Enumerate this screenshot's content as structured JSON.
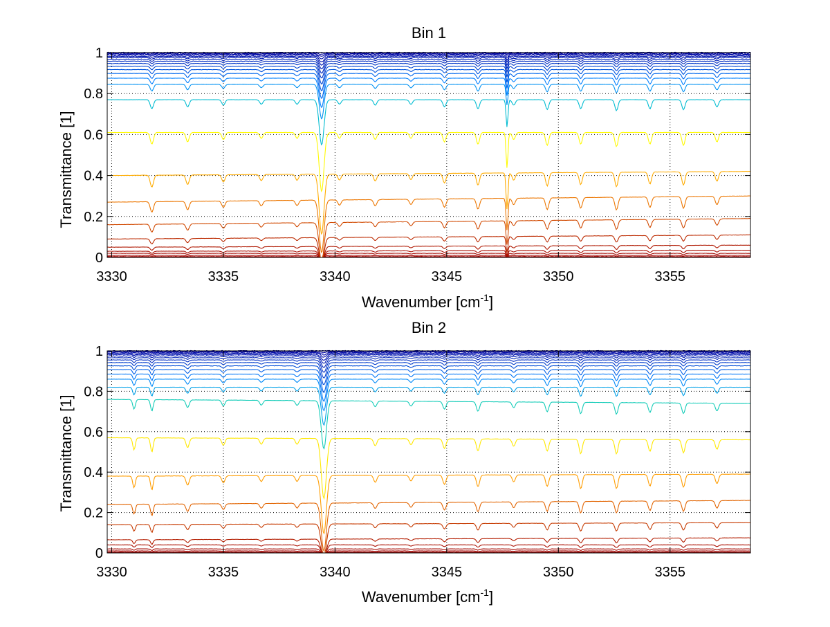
{
  "chart_data": [
    {
      "type": "line",
      "title": "Bin 1",
      "xlabel": "Wavenumber [cm",
      "xlabel_sup": "-1",
      "xlabel_end": "]",
      "ylabel": "Transmittance [1]",
      "xlim": [
        3329.8,
        3358.6
      ],
      "ylim": [
        0,
        1
      ],
      "xticks": [
        3330,
        3335,
        3340,
        3345,
        3350,
        3355
      ],
      "xtick_labels": [
        "3330",
        "3335",
        "3340",
        "3345",
        "3350",
        "3355"
      ],
      "yticks": [
        0,
        0.2,
        0.4,
        0.6,
        0.8,
        1
      ],
      "ytick_labels": [
        "0",
        "0.2",
        "0.4",
        "0.6",
        "0.8",
        "1"
      ],
      "grid": true,
      "legend": "none",
      "colormap": [
        "#0000a0",
        "#0080ff",
        "#00c8c8",
        "#ffff00",
        "#ffd200",
        "#ff9600",
        "#e06000",
        "#c03000",
        "#a00000"
      ],
      "series_baselines": [
        1.0,
        0.997,
        0.993,
        0.988,
        0.982,
        0.975,
        0.967,
        0.958,
        0.947,
        0.933,
        0.917,
        0.898,
        0.875,
        0.845,
        0.77,
        0.61,
        0.42,
        0.3,
        0.19,
        0.11,
        0.06,
        0.035,
        0.02,
        0.01,
        0.004,
        0.001
      ],
      "series_tilt": [
        0,
        0,
        0,
        0,
        0,
        0,
        0,
        0,
        0,
        0,
        0,
        0,
        0,
        0,
        0,
        0,
        -0.02,
        -0.03,
        -0.03,
        -0.02,
        -0.01,
        -0.005,
        0,
        0,
        0,
        0
      ],
      "absorption_lines": [
        {
          "x": 3339.4,
          "depth": 1.0,
          "width": 0.15
        },
        {
          "x": 3347.7,
          "depth": 0.6,
          "width": 0.06
        },
        {
          "x": 3331.8,
          "depth": 0.2,
          "width": 0.1
        },
        {
          "x": 3333.4,
          "depth": 0.16,
          "width": 0.1
        },
        {
          "x": 3335.0,
          "depth": 0.12,
          "width": 0.1
        },
        {
          "x": 3336.7,
          "depth": 0.1,
          "width": 0.1
        },
        {
          "x": 3338.3,
          "depth": 0.1,
          "width": 0.1
        },
        {
          "x": 3340.2,
          "depth": 0.1,
          "width": 0.1
        },
        {
          "x": 3341.8,
          "depth": 0.12,
          "width": 0.1
        },
        {
          "x": 3343.4,
          "depth": 0.1,
          "width": 0.1
        },
        {
          "x": 3344.9,
          "depth": 0.16,
          "width": 0.1
        },
        {
          "x": 3346.4,
          "depth": 0.2,
          "width": 0.1
        },
        {
          "x": 3348.0,
          "depth": 0.12,
          "width": 0.1
        },
        {
          "x": 3349.5,
          "depth": 0.22,
          "width": 0.1
        },
        {
          "x": 3351.0,
          "depth": 0.2,
          "width": 0.1
        },
        {
          "x": 3352.6,
          "depth": 0.24,
          "width": 0.1
        },
        {
          "x": 3354.1,
          "depth": 0.2,
          "width": 0.1
        },
        {
          "x": 3355.6,
          "depth": 0.22,
          "width": 0.1
        },
        {
          "x": 3357.1,
          "depth": 0.16,
          "width": 0.1
        }
      ]
    },
    {
      "type": "line",
      "title": "Bin 2",
      "xlabel": "Wavenumber [cm",
      "xlabel_sup": "-1",
      "xlabel_end": "]",
      "ylabel": "Transmittance [1]",
      "xlim": [
        3329.8,
        3358.6
      ],
      "ylim": [
        0,
        1
      ],
      "xticks": [
        3330,
        3335,
        3340,
        3345,
        3350,
        3355
      ],
      "xtick_labels": [
        "3330",
        "3335",
        "3340",
        "3345",
        "3350",
        "3355"
      ],
      "yticks": [
        0,
        0.2,
        0.4,
        0.6,
        0.8,
        1
      ],
      "ytick_labels": [
        "0",
        "0.2",
        "0.4",
        "0.6",
        "0.8",
        "1"
      ],
      "grid": true,
      "legend": "none",
      "colormap": [
        "#0000a0",
        "#0080ff",
        "#00c8c8",
        "#ffff00",
        "#ffd200",
        "#ff9600",
        "#e06000",
        "#c03000",
        "#a00000"
      ],
      "series_baselines": [
        1.0,
        0.997,
        0.993,
        0.988,
        0.982,
        0.975,
        0.966,
        0.955,
        0.942,
        0.926,
        0.907,
        0.885,
        0.86,
        0.82,
        0.74,
        0.56,
        0.39,
        0.26,
        0.15,
        0.075,
        0.04,
        0.02,
        0.01,
        0.004,
        0.001
      ],
      "series_tilt": [
        0,
        0,
        0,
        0,
        0,
        0,
        0,
        0,
        0,
        0,
        0,
        0,
        0,
        0,
        0.02,
        0.01,
        -0.01,
        -0.02,
        -0.01,
        -0.01,
        0,
        0,
        0,
        0,
        0
      ],
      "absorption_lines": [
        {
          "x": 3339.5,
          "depth": 1.0,
          "width": 0.16
        },
        {
          "x": 3331.0,
          "depth": 0.2,
          "width": 0.08
        },
        {
          "x": 3331.8,
          "depth": 0.24,
          "width": 0.08
        },
        {
          "x": 3333.4,
          "depth": 0.16,
          "width": 0.1
        },
        {
          "x": 3335.0,
          "depth": 0.12,
          "width": 0.1
        },
        {
          "x": 3336.7,
          "depth": 0.1,
          "width": 0.1
        },
        {
          "x": 3338.3,
          "depth": 0.1,
          "width": 0.1
        },
        {
          "x": 3341.8,
          "depth": 0.12,
          "width": 0.1
        },
        {
          "x": 3343.4,
          "depth": 0.1,
          "width": 0.1
        },
        {
          "x": 3344.9,
          "depth": 0.16,
          "width": 0.1
        },
        {
          "x": 3346.4,
          "depth": 0.2,
          "width": 0.1
        },
        {
          "x": 3348.0,
          "depth": 0.12,
          "width": 0.1
        },
        {
          "x": 3349.5,
          "depth": 0.2,
          "width": 0.1
        },
        {
          "x": 3351.0,
          "depth": 0.24,
          "width": 0.1
        },
        {
          "x": 3352.6,
          "depth": 0.24,
          "width": 0.1
        },
        {
          "x": 3354.1,
          "depth": 0.2,
          "width": 0.1
        },
        {
          "x": 3355.6,
          "depth": 0.22,
          "width": 0.1
        },
        {
          "x": 3357.1,
          "depth": 0.16,
          "width": 0.1
        }
      ]
    }
  ]
}
